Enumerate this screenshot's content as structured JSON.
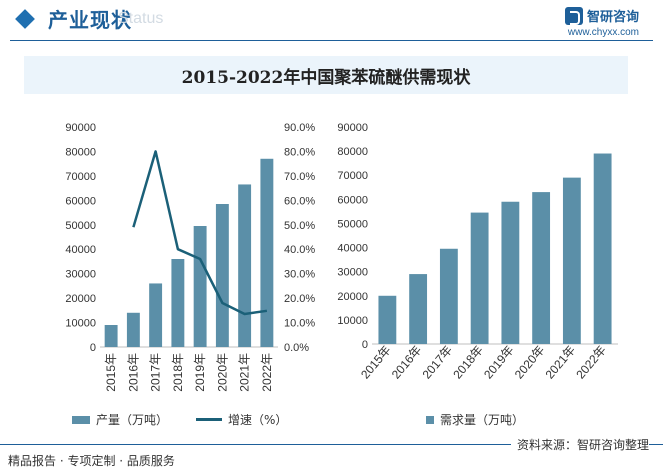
{
  "header": {
    "title": "产业现状",
    "ghost_text": "Status"
  },
  "brand": {
    "name": "智研咨询",
    "url": "www.chyxx.com"
  },
  "chart_title": "2015-2022年中国聚苯硫醚供需现状",
  "chart_data": [
    {
      "type": "bar+line",
      "categories": [
        "2015年",
        "2016年",
        "2017年",
        "2018年",
        "2019年",
        "2020年",
        "2021年",
        "2022年"
      ],
      "series": [
        {
          "name": "产量（万吨）",
          "type": "bar",
          "axis": "left",
          "values": [
            9000,
            14000,
            26000,
            36000,
            49500,
            58500,
            66500,
            77000
          ]
        },
        {
          "name": "增速（%）",
          "type": "line",
          "axis": "right",
          "values": [
            null,
            49.0,
            80.0,
            40.0,
            36.0,
            18.0,
            13.5,
            14.8
          ]
        }
      ],
      "left_axis": {
        "min": 0,
        "max": 90000,
        "step": 10000,
        "ticks": [
          "0",
          "10000",
          "20000",
          "30000",
          "40000",
          "50000",
          "60000",
          "70000",
          "80000",
          "90000"
        ]
      },
      "right_axis": {
        "min": 0,
        "max": 90,
        "step": 10,
        "ticks": [
          "0.0%",
          "10.0%",
          "20.0%",
          "30.0%",
          "40.0%",
          "50.0%",
          "60.0%",
          "70.0%",
          "80.0%",
          "90.0%"
        ]
      },
      "legend_position": "bottom"
    },
    {
      "type": "bar",
      "categories": [
        "2015年",
        "2016年",
        "2017年",
        "2018年",
        "2019年",
        "2020年",
        "2021年",
        "2022年"
      ],
      "series": [
        {
          "name": "需求量（万吨）",
          "values": [
            20000,
            29000,
            39500,
            54500,
            59000,
            63000,
            69000,
            79000
          ]
        }
      ],
      "left_axis": {
        "min": 0,
        "max": 90000,
        "step": 10000,
        "ticks": [
          "0",
          "10000",
          "20000",
          "30000",
          "40000",
          "50000",
          "60000",
          "70000",
          "80000",
          "90000"
        ]
      },
      "legend_position": "bottom"
    }
  ],
  "colors": {
    "bar": "#5b8fa8",
    "line": "#1b6078",
    "accent": "#1e5f99",
    "title_bg": "#ebf4fb"
  },
  "footer": {
    "left": "精品报告 · 专项定制 · 品质服务",
    "right": "资料来源：智研咨询整理"
  }
}
